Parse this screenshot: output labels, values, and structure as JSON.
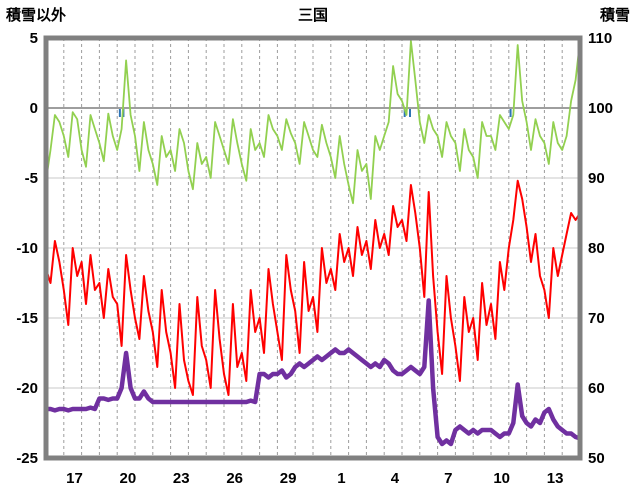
{
  "chart_data": {
    "type": "line",
    "title": "三国",
    "left_axis": {
      "label": "積雪以外",
      "min": -25,
      "max": 5,
      "ticks": [
        5,
        0,
        -5,
        -10,
        -15,
        -20,
        -25
      ]
    },
    "right_axis": {
      "label": "積雪",
      "min": 50,
      "max": 110,
      "ticks": [
        110,
        100,
        90,
        80,
        70,
        60,
        50
      ]
    },
    "x_axis": {
      "domain": [
        0,
        30
      ],
      "tick_labels": [
        "17",
        "20",
        "23",
        "26",
        "29",
        "1",
        "4",
        "7",
        "10",
        "13"
      ],
      "tick_positions": [
        1.6,
        4.6,
        7.6,
        10.6,
        13.6,
        16.6,
        19.6,
        22.6,
        25.6,
        28.6
      ],
      "day_gridlines": [
        1,
        2,
        3,
        4,
        5,
        6,
        7,
        8,
        9,
        10,
        11,
        12,
        13,
        14,
        15,
        16,
        17,
        18,
        19,
        20,
        21,
        22,
        23,
        24,
        25,
        26,
        27,
        28,
        29
      ]
    },
    "colors": {
      "frame": "#808080",
      "grid": "#c9c9c9",
      "zero_line": "#7f7f7f",
      "day_grid": "#9c9c9c",
      "background": "#ffffff",
      "text": "#000000"
    },
    "event_ticks": {
      "name": "precip-ticks",
      "color": "#2e75b6",
      "positions": [
        4.15,
        4.35,
        20.15,
        20.45,
        26.1
      ]
    },
    "series": [
      {
        "name": "temperature-green",
        "axis": "left",
        "color": "#92d050",
        "width": 1.8,
        "x_start": 0,
        "x_step": 0.25,
        "values": [
          -5.2,
          -3.0,
          -0.5,
          -1.0,
          -2.0,
          -3.5,
          -0.3,
          -0.8,
          -3.0,
          -4.2,
          -0.5,
          -1.5,
          -2.5,
          -3.8,
          -0.4,
          -2.0,
          -3.0,
          -1.5,
          3.4,
          -0.5,
          -2.0,
          -4.5,
          -1.0,
          -3.0,
          -4.0,
          -5.5,
          -2.0,
          -3.5,
          -3.0,
          -4.5,
          -1.5,
          -2.5,
          -4.5,
          -5.8,
          -2.5,
          -4.0,
          -3.5,
          -5.0,
          -1.0,
          -2.0,
          -3.0,
          -4.0,
          -0.8,
          -2.5,
          -4.0,
          -5.2,
          -1.5,
          -3.0,
          -2.5,
          -3.5,
          -0.5,
          -1.5,
          -2.0,
          -3.0,
          -0.8,
          -1.8,
          -2.5,
          -4.0,
          -1.0,
          -2.0,
          -3.0,
          -3.5,
          -1.2,
          -2.5,
          -3.5,
          -5.0,
          -2.0,
          -4.0,
          -5.5,
          -6.8,
          -3.0,
          -4.5,
          -4.0,
          -6.5,
          -2.0,
          -3.0,
          -2.0,
          -1.0,
          3.0,
          1.0,
          0.5,
          -0.5,
          4.8,
          2.0,
          -1.0,
          -2.5,
          -0.5,
          -1.5,
          -2.0,
          -3.5,
          -1.0,
          -2.0,
          -2.5,
          -4.5,
          -1.5,
          -3.0,
          -3.5,
          -5.0,
          -1.0,
          -2.0,
          -2.0,
          -3.0,
          -0.5,
          -1.0,
          -1.5,
          -0.5,
          4.5,
          0.5,
          -1.0,
          -3.0,
          -0.8,
          -2.0,
          -2.5,
          -4.0,
          -1.0,
          -2.5,
          -3.0,
          -2.0,
          0.5,
          2.0,
          4.8
        ]
      },
      {
        "name": "temperature-red",
        "axis": "left",
        "color": "#ff0000",
        "width": 2,
        "x_start": 0,
        "x_step": 0.25,
        "values": [
          -11.5,
          -12.5,
          -9.5,
          -11.0,
          -13.0,
          -15.5,
          -10.0,
          -12.0,
          -11.0,
          -14.0,
          -10.5,
          -13.0,
          -12.5,
          -15.0,
          -11.5,
          -13.5,
          -14.0,
          -17.0,
          -10.5,
          -13.0,
          -15.0,
          -16.5,
          -12.0,
          -14.5,
          -16.0,
          -18.5,
          -13.0,
          -16.0,
          -17.5,
          -20.0,
          -14.0,
          -18.0,
          -19.5,
          -20.5,
          -13.5,
          -17.0,
          -18.0,
          -20.0,
          -13.0,
          -16.5,
          -19.0,
          -20.5,
          -14.0,
          -18.5,
          -17.5,
          -19.5,
          -13.0,
          -16.0,
          -15.0,
          -17.5,
          -11.5,
          -14.0,
          -16.0,
          -18.0,
          -10.5,
          -13.0,
          -14.5,
          -17.5,
          -11.0,
          -14.5,
          -13.5,
          -16.0,
          -10.0,
          -12.5,
          -11.5,
          -13.0,
          -9.0,
          -11.0,
          -10.0,
          -12.0,
          -8.5,
          -10.5,
          -9.5,
          -11.5,
          -8.0,
          -10.0,
          -9.0,
          -10.5,
          -7.0,
          -8.5,
          -8.0,
          -9.5,
          -5.5,
          -7.5,
          -10.0,
          -13.5,
          -6.0,
          -12.0,
          -16.0,
          -19.0,
          -12.0,
          -15.0,
          -17.0,
          -19.5,
          -13.5,
          -16.0,
          -15.0,
          -18.0,
          -12.5,
          -15.5,
          -14.0,
          -16.5,
          -11.0,
          -13.0,
          -10.0,
          -8.0,
          -5.2,
          -6.5,
          -8.5,
          -11.0,
          -9.0,
          -12.0,
          -13.0,
          -15.0,
          -10.0,
          -12.0,
          -10.5,
          -9.0,
          -7.5,
          -8.0,
          -7.5
        ]
      },
      {
        "name": "snow-depth-purple",
        "axis": "right",
        "color": "#7030a0",
        "width": 4.5,
        "x_start": 0,
        "x_step": 0.25,
        "values": [
          57,
          57,
          56.8,
          57,
          57,
          56.8,
          57,
          57,
          57,
          57,
          57.2,
          57,
          58.5,
          58.5,
          58.3,
          58.5,
          58.5,
          60,
          65,
          60,
          58.5,
          58.5,
          59.5,
          58.5,
          58,
          58,
          58,
          58,
          58,
          58,
          58,
          58,
          58,
          58,
          58,
          58,
          58,
          58,
          58,
          58,
          58,
          58,
          58,
          58,
          58,
          58,
          58.2,
          58,
          62,
          62,
          61.5,
          62,
          62,
          62.5,
          61.5,
          62,
          63,
          63.5,
          63,
          63.5,
          64,
          64.5,
          64,
          64.5,
          65,
          65.5,
          65,
          65,
          65.5,
          65,
          64.5,
          64,
          63.5,
          63,
          63.5,
          63,
          64,
          63.5,
          62.5,
          62,
          62,
          62.5,
          63,
          62.5,
          62,
          63,
          72.5,
          60,
          53,
          52,
          52.5,
          52,
          54,
          54.5,
          54,
          53.5,
          54,
          53.5,
          54,
          54,
          54,
          53.5,
          53,
          53.5,
          53.5,
          55,
          60.5,
          56,
          55,
          54.5,
          55.5,
          55,
          56.5,
          57,
          55.5,
          54.5,
          54,
          53.5,
          53.5,
          53,
          52.8
        ]
      }
    ]
  }
}
